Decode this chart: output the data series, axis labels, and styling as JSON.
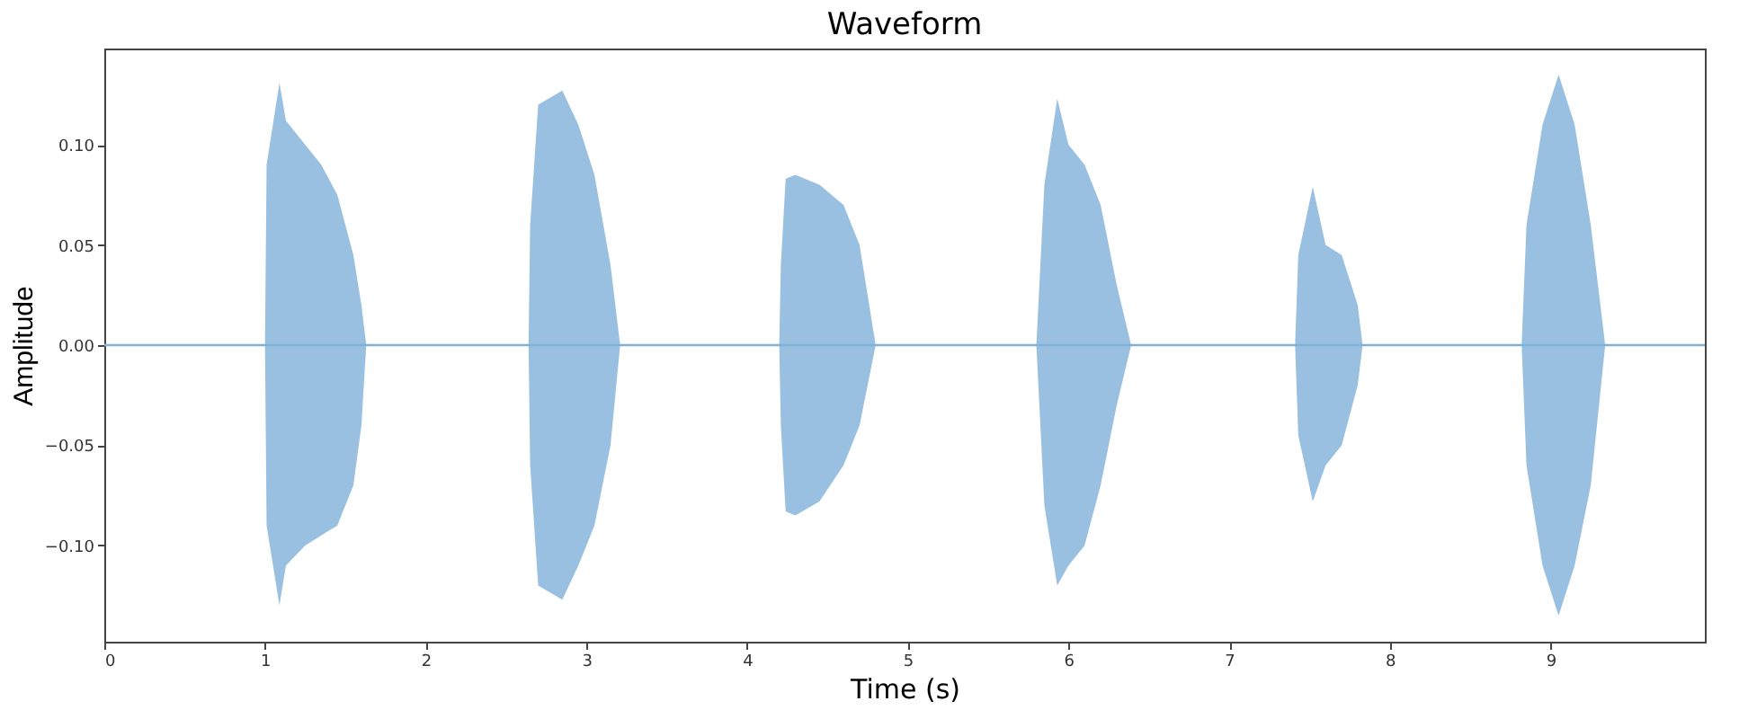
{
  "chart_data": {
    "type": "line",
    "title": "Waveform",
    "xlabel": "Time (s)",
    "ylabel": "Amplitude",
    "x": [
      0,
      1.0,
      1.01,
      1.09,
      1.13,
      1.25,
      1.35,
      1.45,
      1.55,
      1.6,
      1.63,
      2.64,
      2.65,
      2.7,
      2.85,
      2.95,
      3.05,
      3.15,
      3.21,
      4.2,
      4.21,
      4.24,
      4.3,
      4.45,
      4.6,
      4.7,
      4.8,
      5.8,
      5.85,
      5.93,
      6.0,
      6.1,
      6.2,
      6.3,
      6.39,
      7.41,
      7.43,
      7.52,
      7.6,
      7.7,
      7.8,
      7.83,
      8.82,
      8.85,
      8.95,
      9.05,
      9.15,
      9.25,
      9.34,
      9.96
    ],
    "series": [
      {
        "color": "#7fb0d8",
        "values": [
          0,
          0,
          0,
          0,
          0,
          0,
          0,
          0,
          0,
          0,
          0,
          0,
          0,
          0,
          0,
          0,
          0,
          0,
          0,
          0,
          0,
          0,
          0,
          0,
          0,
          0,
          0,
          0,
          0,
          0,
          0,
          0,
          0,
          0,
          0,
          0,
          0,
          0,
          0,
          0,
          0,
          0,
          0,
          0,
          0,
          0,
          0,
          0,
          0,
          0
        ],
        "upper": [
          0,
          0,
          0.09,
          0.131,
          0.112,
          0.1,
          0.09,
          0.075,
          0.045,
          0.02,
          0,
          0,
          0.06,
          0.12,
          0.127,
          0.11,
          0.085,
          0.04,
          0,
          0,
          0.04,
          0.083,
          0.085,
          0.08,
          0.07,
          0.05,
          0,
          0,
          0.08,
          0.123,
          0.1,
          0.09,
          0.07,
          0.03,
          0,
          0,
          0.045,
          0.079,
          0.05,
          0.045,
          0.02,
          0,
          0,
          0.06,
          0.11,
          0.135,
          0.11,
          0.06,
          0,
          0
        ],
        "lower": [
          0,
          0,
          -0.09,
          -0.13,
          -0.11,
          -0.1,
          -0.095,
          -0.09,
          -0.07,
          -0.04,
          0,
          0,
          -0.06,
          -0.12,
          -0.127,
          -0.11,
          -0.09,
          -0.05,
          0,
          0,
          -0.04,
          -0.083,
          -0.085,
          -0.078,
          -0.06,
          -0.04,
          0,
          0,
          -0.08,
          -0.12,
          -0.11,
          -0.1,
          -0.07,
          -0.03,
          0,
          0,
          -0.045,
          -0.078,
          -0.06,
          -0.05,
          -0.02,
          0,
          0,
          -0.06,
          -0.11,
          -0.135,
          -0.11,
          -0.07,
          0,
          0
        ]
      }
    ],
    "xlim": [
      0,
      9.96
    ],
    "xticks": [
      0,
      1,
      2,
      3,
      4,
      5,
      6,
      7,
      8,
      9
    ],
    "ylim": [
      -0.148,
      0.148
    ],
    "yticks": [
      {
        "value": -0.1,
        "label": "−0.10"
      },
      {
        "value": -0.05,
        "label": "−0.05"
      },
      {
        "value": 0,
        "label": "0.00"
      },
      {
        "value": 0.05,
        "label": "0.05"
      },
      {
        "value": 0.1,
        "label": "0.10"
      }
    ],
    "marker": "none",
    "line_style": "solid"
  }
}
